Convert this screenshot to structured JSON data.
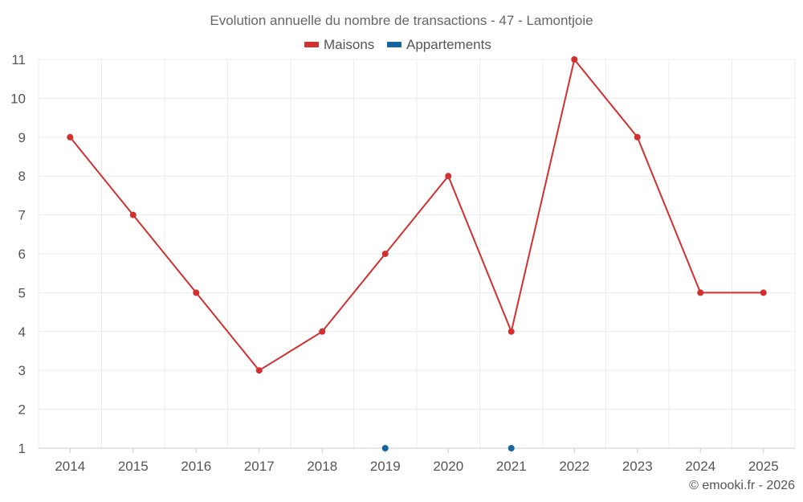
{
  "chart_data": {
    "type": "line",
    "title": "Evolution annuelle du nombre de transactions - 47 - Lamontjoie",
    "categories": [
      "2014",
      "2015",
      "2016",
      "2017",
      "2018",
      "2019",
      "2020",
      "2021",
      "2022",
      "2023",
      "2024",
      "2025"
    ],
    "ylim": [
      1,
      11
    ],
    "yticks": [
      1,
      2,
      3,
      4,
      5,
      6,
      7,
      8,
      9,
      10,
      11
    ],
    "grid": true,
    "legend_position": "top-center",
    "series": [
      {
        "name": "Maisons",
        "color": "#d32f2f",
        "values": [
          9,
          7,
          5,
          3,
          4,
          6,
          8,
          4,
          11,
          9,
          5,
          5
        ]
      },
      {
        "name": "Appartements",
        "color": "#1565a0",
        "values": [
          null,
          null,
          null,
          null,
          null,
          1,
          null,
          1,
          null,
          null,
          null,
          null
        ]
      }
    ],
    "credit": "© emooki.fr - 2026"
  }
}
